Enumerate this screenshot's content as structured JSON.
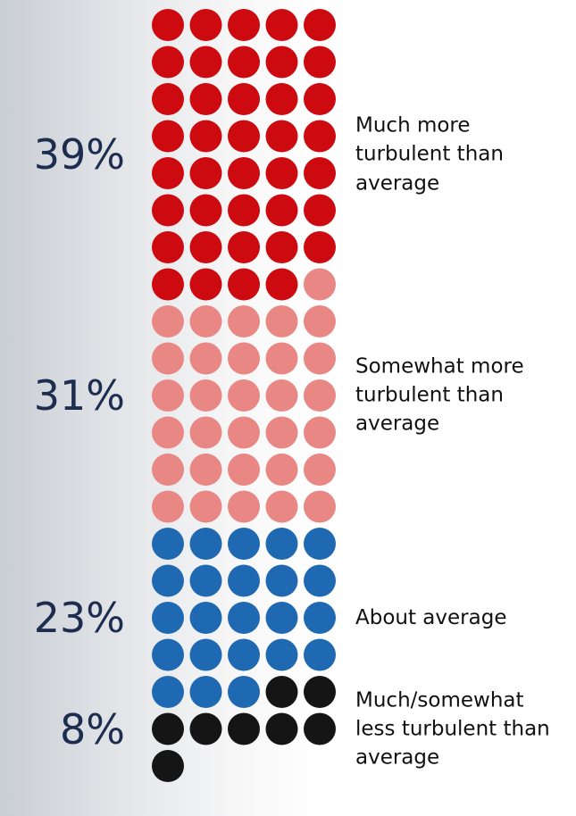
{
  "chart_data": {
    "type": "waffle",
    "categories": [
      "Much more turbulent than average",
      "Somewhat more turbulent than average",
      "About average",
      "Much/somewhat less turbulent than average"
    ],
    "values": [
      39,
      31,
      23,
      8
    ],
    "value_labels": [
      "39%",
      "31%",
      "23%",
      "8%"
    ],
    "colors": [
      "#cc0a0f",
      "#e88784",
      "#1f69b3",
      "#151515"
    ]
  }
}
